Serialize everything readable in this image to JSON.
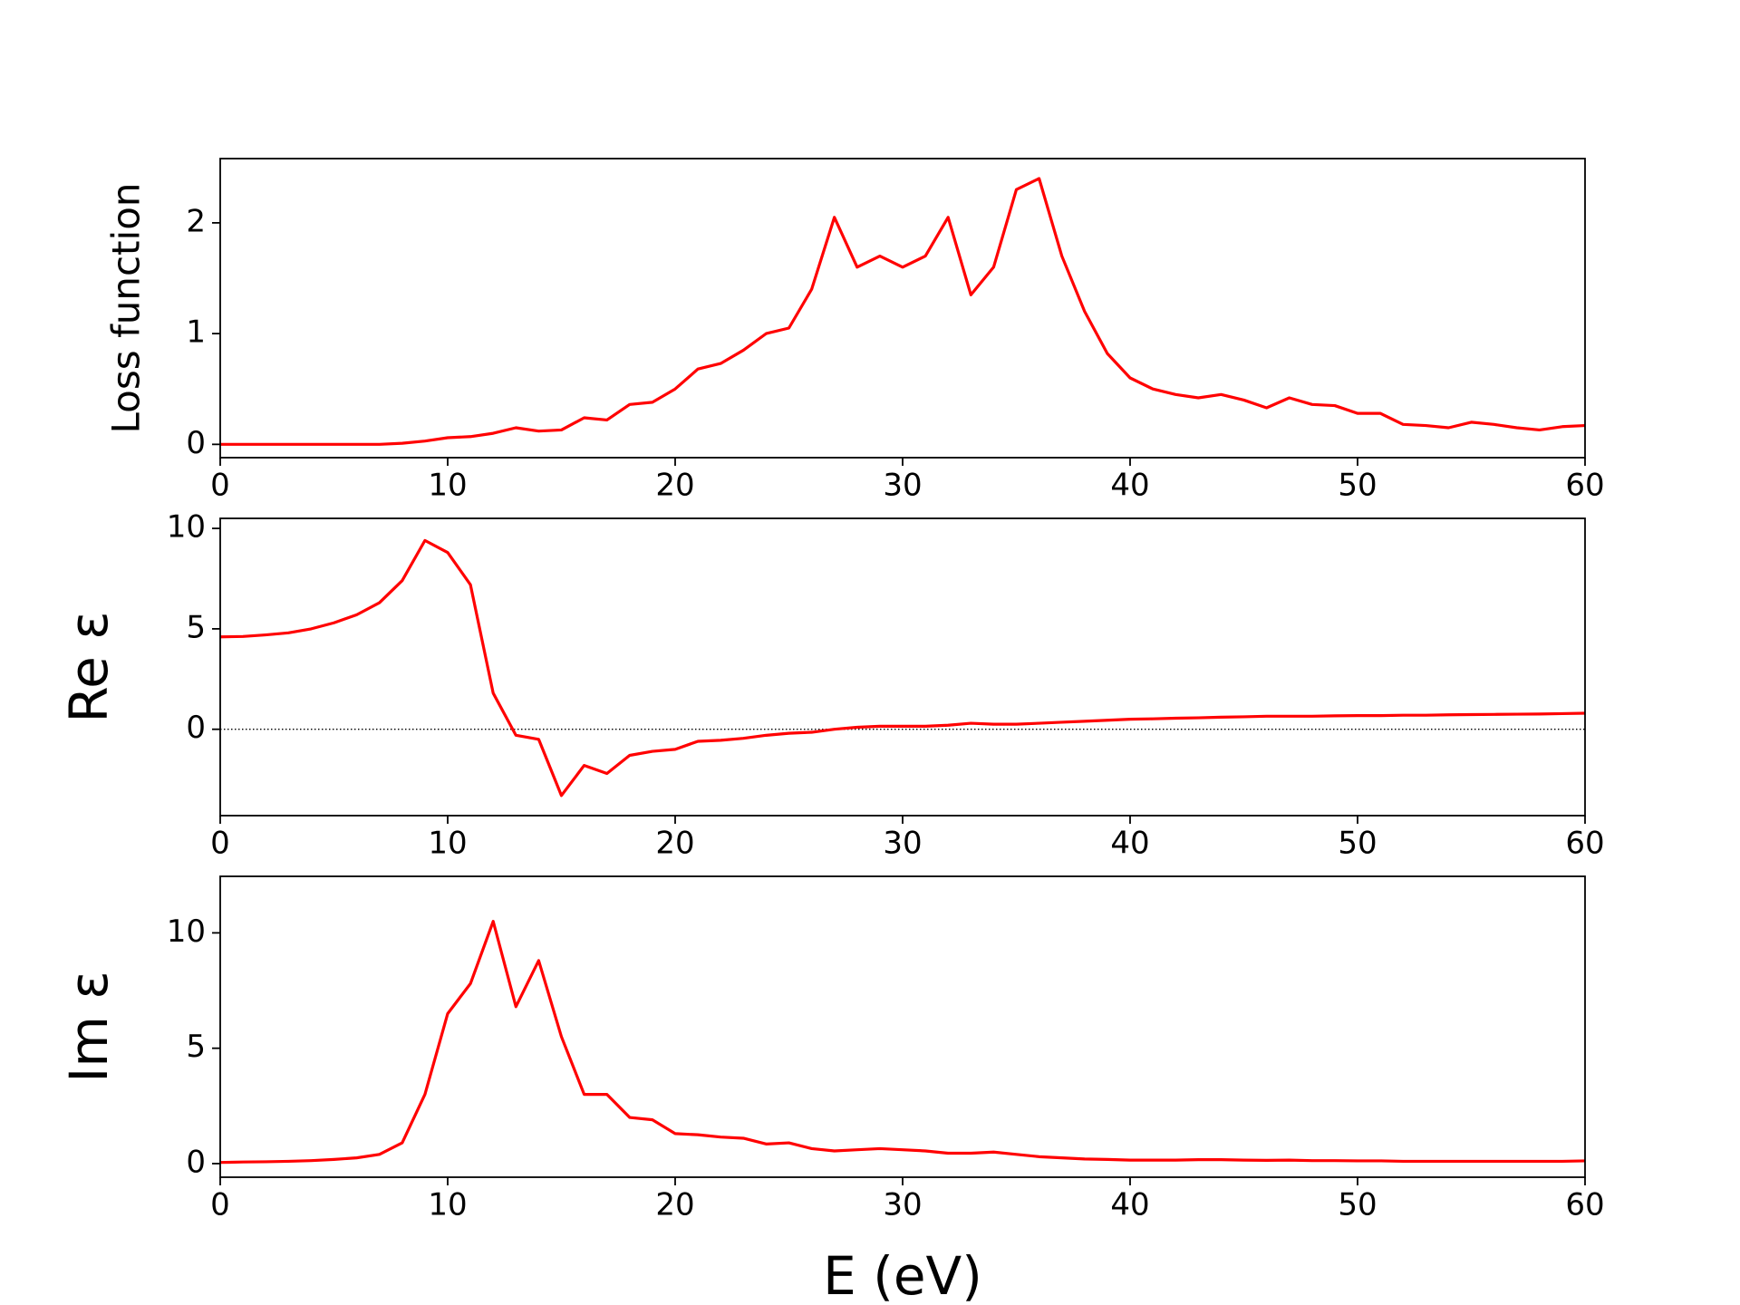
{
  "chart_data": [
    {
      "type": "line",
      "ylabel": "Loss function",
      "x": [
        0,
        1,
        2,
        3,
        4,
        5,
        6,
        7,
        8,
        9,
        10,
        11,
        12,
        13,
        14,
        15,
        16,
        17,
        18,
        19,
        20,
        21,
        22,
        23,
        24,
        25,
        26,
        27,
        28,
        29,
        30,
        31,
        32,
        33,
        34,
        35,
        36,
        37,
        38,
        39,
        40,
        41,
        42,
        43,
        44,
        45,
        46,
        47,
        48,
        49,
        50,
        51,
        52,
        53,
        54,
        55,
        56,
        57,
        58,
        59,
        60
      ],
      "series": [
        {
          "color": "#ff0000",
          "values": [
            0,
            0,
            0,
            0,
            0,
            0,
            0,
            0,
            0.01,
            0.03,
            0.06,
            0.07,
            0.1,
            0.15,
            0.12,
            0.13,
            0.24,
            0.22,
            0.36,
            0.38,
            0.5,
            0.68,
            0.73,
            0.85,
            1.0,
            1.05,
            1.4,
            2.05,
            1.6,
            1.7,
            1.6,
            1.7,
            2.05,
            1.35,
            1.6,
            2.3,
            2.4,
            1.7,
            1.2,
            0.82,
            0.6,
            0.5,
            0.45,
            0.42,
            0.45,
            0.4,
            0.33,
            0.42,
            0.36,
            0.35,
            0.28,
            0.28,
            0.18,
            0.17,
            0.15,
            0.2,
            0.18,
            0.15,
            0.13,
            0.16,
            0.17
          ]
        }
      ],
      "xlim": [
        0,
        60
      ],
      "xticks": [
        0,
        10,
        20,
        30,
        40,
        50,
        60
      ],
      "ylim": [
        -0.12,
        2.58
      ],
      "yticks": [
        0,
        1,
        2
      ],
      "zero_line": false
    },
    {
      "type": "line",
      "ylabel": "Re ε",
      "x": [
        0,
        1,
        2,
        3,
        4,
        5,
        6,
        7,
        8,
        9,
        10,
        11,
        12,
        13,
        14,
        15,
        16,
        17,
        18,
        19,
        20,
        21,
        22,
        23,
        24,
        25,
        26,
        27,
        28,
        29,
        30,
        31,
        32,
        33,
        34,
        35,
        36,
        37,
        38,
        39,
        40,
        41,
        42,
        43,
        44,
        45,
        46,
        47,
        48,
        49,
        50,
        51,
        52,
        53,
        54,
        55,
        56,
        57,
        58,
        59,
        60
      ],
      "series": [
        {
          "color": "#ff0000",
          "values": [
            4.6,
            4.62,
            4.7,
            4.8,
            5.0,
            5.3,
            5.7,
            6.3,
            7.4,
            9.4,
            8.8,
            7.2,
            1.8,
            -0.3,
            -0.5,
            -3.3,
            -1.8,
            -2.2,
            -1.3,
            -1.1,
            -1.0,
            -0.6,
            -0.55,
            -0.45,
            -0.3,
            -0.2,
            -0.15,
            0.0,
            0.1,
            0.15,
            0.15,
            0.15,
            0.2,
            0.3,
            0.25,
            0.25,
            0.3,
            0.35,
            0.4,
            0.45,
            0.5,
            0.52,
            0.55,
            0.57,
            0.6,
            0.62,
            0.65,
            0.65,
            0.65,
            0.67,
            0.68,
            0.68,
            0.7,
            0.7,
            0.72,
            0.73,
            0.74,
            0.75,
            0.76,
            0.78,
            0.8
          ]
        }
      ],
      "xlim": [
        0,
        60
      ],
      "xticks": [
        0,
        10,
        20,
        30,
        40,
        50,
        60
      ],
      "ylim": [
        -4.3,
        10.5
      ],
      "yticks": [
        0,
        5,
        10
      ],
      "zero_line": true
    },
    {
      "type": "line",
      "ylabel": "Im ε",
      "xlabel": "E (eV)",
      "x": [
        0,
        1,
        2,
        3,
        4,
        5,
        6,
        7,
        8,
        9,
        10,
        11,
        12,
        13,
        14,
        15,
        16,
        17,
        18,
        19,
        20,
        21,
        22,
        23,
        24,
        25,
        26,
        27,
        28,
        29,
        30,
        31,
        32,
        33,
        34,
        35,
        36,
        37,
        38,
        39,
        40,
        41,
        42,
        43,
        44,
        45,
        46,
        47,
        48,
        49,
        50,
        51,
        52,
        53,
        54,
        55,
        56,
        57,
        58,
        59,
        60
      ],
      "series": [
        {
          "color": "#ff0000",
          "values": [
            0.05,
            0.07,
            0.08,
            0.1,
            0.13,
            0.18,
            0.25,
            0.4,
            0.9,
            3.0,
            6.5,
            7.8,
            10.5,
            6.8,
            8.8,
            5.5,
            3.0,
            3.0,
            2.0,
            1.9,
            1.3,
            1.25,
            1.15,
            1.1,
            0.85,
            0.9,
            0.65,
            0.55,
            0.6,
            0.65,
            0.6,
            0.55,
            0.45,
            0.45,
            0.5,
            0.4,
            0.3,
            0.25,
            0.2,
            0.18,
            0.15,
            0.15,
            0.15,
            0.17,
            0.17,
            0.15,
            0.14,
            0.15,
            0.13,
            0.13,
            0.12,
            0.12,
            0.1,
            0.1,
            0.1,
            0.1,
            0.1,
            0.1,
            0.1,
            0.1,
            0.12
          ]
        }
      ],
      "xlim": [
        0,
        60
      ],
      "xticks": [
        0,
        10,
        20,
        30,
        40,
        50,
        60
      ],
      "ylim": [
        -0.59,
        12.45
      ],
      "yticks": [
        0,
        5,
        10
      ],
      "zero_line": false
    }
  ]
}
